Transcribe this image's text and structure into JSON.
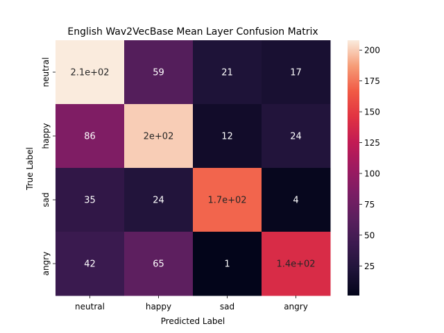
{
  "chart_data": {
    "type": "heatmap",
    "title": "English Wav2VecBase Mean Layer Confusion Matrix",
    "xlabel": "Predicted Label",
    "ylabel": "True Label",
    "x_categories": [
      "neutral",
      "happy",
      "sad",
      "angry"
    ],
    "y_categories": [
      "neutral",
      "happy",
      "sad",
      "angry"
    ],
    "values": [
      [
        208,
        59,
        21,
        17
      ],
      [
        86,
        200,
        12,
        24
      ],
      [
        35,
        24,
        170,
        4
      ],
      [
        42,
        65,
        1,
        140
      ]
    ],
    "cell_labels": [
      [
        "2.1e+02",
        "59",
        "21",
        "17"
      ],
      [
        "86",
        "2e+02",
        "12",
        "24"
      ],
      [
        "35",
        "24",
        "1.7e+02",
        "4"
      ],
      [
        "42",
        "65",
        "1",
        "1.4e+02"
      ]
    ],
    "colorbar": {
      "colormap": "rocket",
      "vmin": 1,
      "vmax": 208,
      "ticks": [
        25,
        50,
        75,
        100,
        125,
        150,
        175,
        200
      ]
    },
    "grid": false,
    "legend": "colorbar-right"
  }
}
